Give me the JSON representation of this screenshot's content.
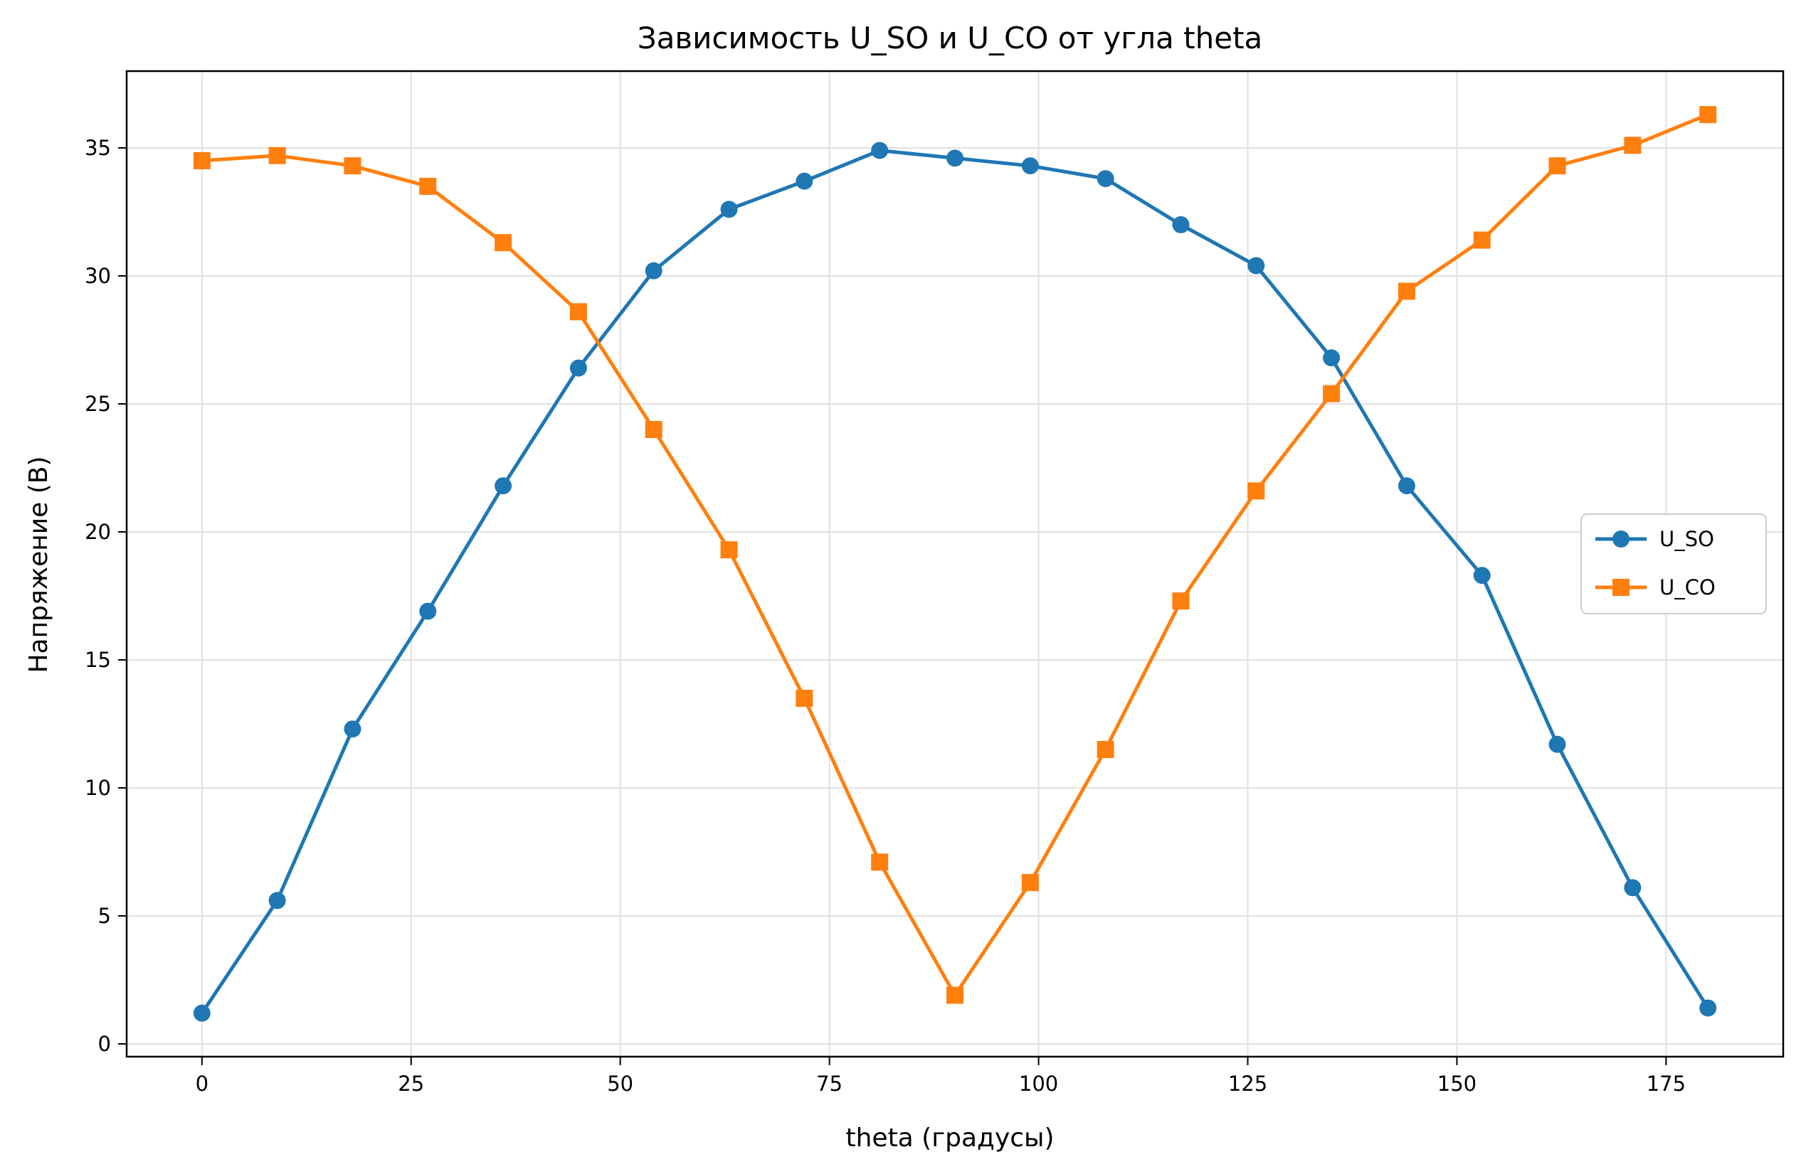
{
  "chart_data": {
    "type": "line",
    "title": "Зависимость U_SO и U_CO от угла theta",
    "xlabel": "theta (градусы)",
    "ylabel": "Напряжение (В)",
    "xlim": [
      -9,
      189
    ],
    "ylim": [
      -0.5,
      38
    ],
    "xticks": [
      0,
      25,
      50,
      75,
      100,
      125,
      150,
      175
    ],
    "yticks": [
      0,
      5,
      10,
      15,
      20,
      25,
      30,
      35
    ],
    "grid": true,
    "legend_position": "center-right",
    "x": [
      0,
      9,
      18,
      27,
      36,
      45,
      54,
      63,
      72,
      81,
      90,
      99,
      108,
      117,
      126,
      135,
      144,
      153,
      162,
      171,
      180
    ],
    "series": [
      {
        "name": "U_SO",
        "marker": "circle",
        "color": "#1f77b4",
        "values": [
          1.2,
          5.6,
          12.3,
          16.9,
          21.8,
          26.4,
          30.2,
          32.6,
          33.7,
          34.9,
          34.6,
          34.3,
          33.8,
          32.0,
          30.4,
          26.8,
          21.8,
          18.3,
          11.7,
          6.1,
          1.4
        ]
      },
      {
        "name": "U_CO",
        "marker": "square",
        "color": "#ff7f0e",
        "values": [
          34.5,
          34.7,
          34.3,
          33.5,
          31.3,
          28.6,
          24.0,
          19.3,
          13.5,
          7.1,
          1.9,
          6.3,
          11.5,
          17.3,
          21.6,
          25.4,
          29.4,
          31.4,
          34.3,
          35.1,
          36.3
        ]
      }
    ]
  }
}
